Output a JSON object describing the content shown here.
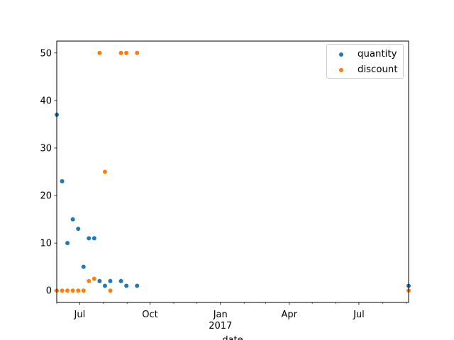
{
  "chart_data": {
    "type": "scatter",
    "xlabel": "date",
    "ylabel": "",
    "x_type": "date",
    "xlim": [
      "2016-06-01",
      "2017-09-04"
    ],
    "ylim": [
      -2.5,
      52.5
    ],
    "y_ticks": [
      0,
      10,
      20,
      30,
      40,
      50
    ],
    "x_ticks": [
      {
        "date": "2016-07-01",
        "label": "Jul"
      },
      {
        "date": "2016-10-01",
        "label": "Oct"
      },
      {
        "date": "2017-01-01",
        "label": "Jan",
        "sublabel": "2017"
      },
      {
        "date": "2017-04-01",
        "label": "Apr"
      },
      {
        "date": "2017-07-01",
        "label": "Jul"
      }
    ],
    "x_minor_ticks": [
      "2016-06-01",
      "2016-08-01",
      "2016-09-01",
      "2016-11-01",
      "2016-12-01",
      "2017-02-01",
      "2017-03-01",
      "2017-05-01",
      "2017-06-01",
      "2017-08-01",
      "2017-09-01"
    ],
    "grid": false,
    "legend": "top-right",
    "series": [
      {
        "name": "quantity",
        "color": "#1f77b4",
        "points": [
          {
            "x": "2016-06-01",
            "y": 37
          },
          {
            "x": "2016-06-08",
            "y": 23
          },
          {
            "x": "2016-06-15",
            "y": 10
          },
          {
            "x": "2016-06-22",
            "y": 15
          },
          {
            "x": "2016-06-29",
            "y": 13
          },
          {
            "x": "2016-07-06",
            "y": 5
          },
          {
            "x": "2016-07-13",
            "y": 11
          },
          {
            "x": "2016-07-20",
            "y": 11
          },
          {
            "x": "2016-07-27",
            "y": 2
          },
          {
            "x": "2016-08-03",
            "y": 1
          },
          {
            "x": "2016-08-10",
            "y": 2
          },
          {
            "x": "2016-08-24",
            "y": 2
          },
          {
            "x": "2016-08-31",
            "y": 1
          },
          {
            "x": "2016-09-14",
            "y": 1
          },
          {
            "x": "2017-09-04",
            "y": 1
          }
        ]
      },
      {
        "name": "discount",
        "color": "#ff7f0e",
        "points": [
          {
            "x": "2016-06-01",
            "y": 0
          },
          {
            "x": "2016-06-08",
            "y": 0
          },
          {
            "x": "2016-06-15",
            "y": 0
          },
          {
            "x": "2016-06-22",
            "y": 0
          },
          {
            "x": "2016-06-29",
            "y": 0
          },
          {
            "x": "2016-07-06",
            "y": 0
          },
          {
            "x": "2016-07-13",
            "y": 2
          },
          {
            "x": "2016-07-20",
            "y": 2.5
          },
          {
            "x": "2016-07-27",
            "y": 50
          },
          {
            "x": "2016-08-03",
            "y": 25
          },
          {
            "x": "2016-08-10",
            "y": 0
          },
          {
            "x": "2016-08-24",
            "y": 50
          },
          {
            "x": "2016-08-31",
            "y": 50
          },
          {
            "x": "2016-09-14",
            "y": 50
          },
          {
            "x": "2017-09-04",
            "y": 0
          }
        ]
      }
    ]
  }
}
